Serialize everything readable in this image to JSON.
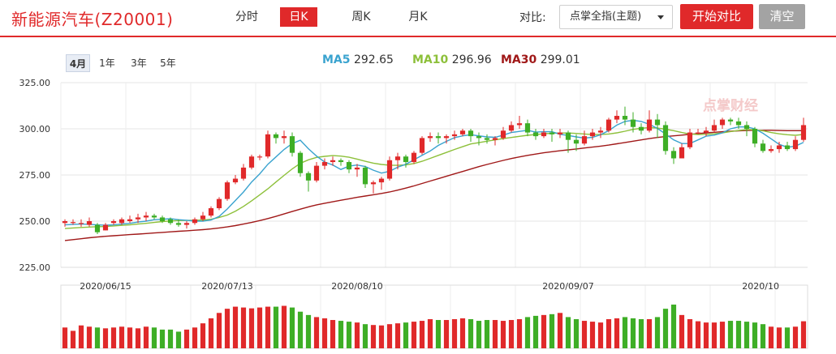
{
  "header": {
    "title": "新能源汽车(Z20001)",
    "period_tabs": [
      {
        "label": "分时",
        "active": false
      },
      {
        "label": "日K",
        "active": true
      },
      {
        "label": "周K",
        "active": false
      },
      {
        "label": "月K",
        "active": false
      }
    ],
    "compare_label": "对比:",
    "compare_select_value": "点掌全指(主题)",
    "start_compare_label": "开始对比",
    "clear_label": "清空"
  },
  "range_tabs": [
    {
      "label": "4月",
      "active": true
    },
    {
      "label": "1年",
      "active": false
    },
    {
      "label": "3年",
      "active": false
    },
    {
      "label": "5年",
      "active": false
    }
  ],
  "ma_legend": [
    {
      "key": "MA5",
      "value": "292.65",
      "color": "#3aa3cf"
    },
    {
      "key": "MA10",
      "value": "296.96",
      "color": "#8dc03a"
    },
    {
      "key": "MA30",
      "value": "299.01",
      "color": "#a01818"
    }
  ],
  "watermark": "点掌财经",
  "colors": {
    "up": "#e0292a",
    "down": "#3eae26",
    "accent": "#e0292a"
  },
  "chart_data": {
    "type": "candlestick",
    "ylim": [
      225,
      325
    ],
    "y_ticks": [
      "325.00",
      "300.00",
      "275.00",
      "250.00",
      "225.00"
    ],
    "x_ticks": [
      "2020/06/15",
      "2020/07/13",
      "2020/08/10",
      "2020/09/07",
      "2020/10"
    ],
    "candles": [
      [
        249,
        250,
        247,
        251
      ],
      [
        249,
        249.5,
        248,
        251
      ],
      [
        249,
        249,
        247,
        251
      ],
      [
        248,
        250,
        247,
        252
      ],
      [
        248,
        244,
        243,
        249
      ],
      [
        245,
        248,
        245,
        249
      ],
      [
        249,
        250,
        248,
        251
      ],
      [
        249,
        251,
        248,
        252
      ],
      [
        250,
        251,
        249,
        253
      ],
      [
        251,
        252,
        249,
        254
      ],
      [
        252,
        253,
        250,
        255
      ],
      [
        253,
        252,
        251,
        254
      ],
      [
        252,
        250,
        249,
        253
      ],
      [
        251,
        249,
        248,
        252
      ],
      [
        249,
        248,
        247,
        251
      ],
      [
        248,
        249,
        246,
        250
      ],
      [
        249,
        251,
        248,
        252
      ],
      [
        251,
        253,
        250,
        255
      ],
      [
        253,
        257,
        252,
        258
      ],
      [
        257,
        262,
        256,
        263
      ],
      [
        262,
        271,
        261,
        272
      ],
      [
        271,
        273,
        270,
        275
      ],
      [
        273,
        279,
        272,
        281
      ],
      [
        279,
        285,
        278,
        286
      ],
      [
        285,
        285,
        283,
        286
      ],
      [
        285,
        297,
        284,
        299
      ],
      [
        297,
        295,
        292,
        298
      ],
      [
        295,
        296,
        292,
        299
      ],
      [
        296,
        287,
        285,
        298
      ],
      [
        287,
        276,
        274,
        288
      ],
      [
        276,
        272,
        266,
        277
      ],
      [
        272,
        280,
        271,
        282
      ],
      [
        280,
        282,
        278,
        284
      ],
      [
        282,
        283,
        280,
        285
      ],
      [
        283,
        282,
        280,
        284
      ],
      [
        282,
        278,
        276,
        283
      ],
      [
        278,
        279,
        274,
        281
      ],
      [
        279,
        270,
        268,
        280
      ],
      [
        270,
        271,
        265,
        272
      ],
      [
        271,
        273,
        267,
        274
      ],
      [
        273,
        283,
        272,
        285
      ],
      [
        283,
        285,
        278,
        287
      ],
      [
        285,
        282,
        279,
        286
      ],
      [
        282,
        287,
        281,
        288
      ],
      [
        287,
        295,
        286,
        296
      ],
      [
        295,
        296,
        293,
        298
      ],
      [
        296,
        295,
        292,
        298
      ],
      [
        295,
        296,
        292,
        297
      ],
      [
        296,
        297,
        294,
        299
      ],
      [
        297,
        299,
        296,
        300
      ],
      [
        299,
        296,
        293,
        300
      ],
      [
        296,
        295,
        291,
        298
      ],
      [
        295,
        294,
        292,
        297
      ],
      [
        294,
        295,
        291,
        296
      ],
      [
        295,
        299,
        294,
        301
      ],
      [
        299,
        302,
        298,
        304
      ],
      [
        302,
        303,
        300,
        307
      ],
      [
        303,
        298,
        296,
        305
      ],
      [
        298,
        296,
        294,
        300
      ],
      [
        296,
        298,
        295,
        300
      ],
      [
        298,
        297,
        293,
        300
      ],
      [
        297,
        298,
        295,
        300
      ],
      [
        298,
        294,
        287,
        299
      ],
      [
        294,
        292,
        288,
        297
      ],
      [
        292,
        296,
        291,
        299
      ],
      [
        296,
        298,
        294,
        300
      ],
      [
        298,
        299,
        295,
        301
      ],
      [
        299,
        305,
        298,
        306
      ],
      [
        305,
        307,
        303,
        310
      ],
      [
        307,
        305,
        302,
        312
      ],
      [
        305,
        301,
        298,
        309
      ],
      [
        301,
        299,
        297,
        303
      ],
      [
        299,
        305,
        298,
        310
      ],
      [
        305,
        302,
        295,
        308
      ],
      [
        302,
        288,
        286,
        304
      ],
      [
        288,
        284,
        281,
        290
      ],
      [
        284,
        290,
        284,
        292
      ],
      [
        290,
        298,
        289,
        300
      ],
      [
        298,
        298,
        297,
        300
      ],
      [
        298,
        299,
        296,
        301
      ],
      [
        299,
        302,
        298,
        305
      ],
      [
        302,
        305,
        300,
        306
      ],
      [
        305,
        304,
        302,
        306
      ],
      [
        304,
        302,
        300,
        306
      ],
      [
        302,
        300,
        296,
        304
      ],
      [
        300,
        292,
        290,
        301
      ],
      [
        292,
        288,
        287,
        294
      ],
      [
        288,
        289,
        287,
        291
      ],
      [
        289,
        291,
        287,
        293
      ],
      [
        291,
        289,
        288,
        293
      ],
      [
        289,
        294,
        288,
        296
      ],
      [
        294,
        302,
        293,
        306
      ]
    ],
    "ma5": [
      248,
      248.2,
      248.4,
      248.3,
      248,
      247.8,
      248,
      248.4,
      248.8,
      249.5,
      250,
      250.8,
      251,
      251.3,
      250.8,
      250.5,
      250,
      250,
      250.6,
      252.6,
      256.6,
      261.2,
      265.8,
      271.2,
      275.6,
      280.8,
      284.8,
      288.8,
      292,
      293.8,
      289.2,
      285.2,
      282,
      280.4,
      278,
      279.8,
      280.4,
      279.6,
      277.6,
      276,
      277,
      279.2,
      280.8,
      283.2,
      285.6,
      288,
      291,
      293.2,
      295.2,
      296.2,
      296.8,
      296.2,
      295.6,
      295.4,
      296.6,
      298,
      298.6,
      299.2,
      298.2,
      298.4,
      298.4,
      297,
      296.4,
      295.6,
      295,
      295.4,
      296.8,
      299,
      302,
      304,
      304.6,
      304,
      302.4,
      300.2,
      297.2,
      294,
      292,
      292,
      294,
      296,
      296.6,
      297.8,
      300,
      301,
      301,
      300,
      297.6,
      294.6,
      291.6,
      290,
      290.6,
      292.65
    ],
    "ma10": [
      246,
      246.3,
      246.6,
      246.8,
      247,
      247.1,
      247.4,
      247.7,
      248,
      248.4,
      248.8,
      249.3,
      249.8,
      250.1,
      250.3,
      250.4,
      250.5,
      250.6,
      251,
      252,
      253.3,
      255.4,
      258,
      261,
      264.2,
      267.5,
      271.2,
      274.8,
      278.3,
      281.3,
      283.2,
      284.5,
      285.1,
      285.5,
      285.2,
      284.6,
      283.6,
      282.4,
      281.4,
      280.7,
      280.3,
      280.2,
      280.5,
      281.2,
      282.4,
      284,
      285.6,
      287.2,
      288.8,
      290.3,
      291.8,
      292.5,
      293.3,
      294,
      294.7,
      295.3,
      295.9,
      296.5,
      296.9,
      297.3,
      297.6,
      297.7,
      297.7,
      297.5,
      297.2,
      296.9,
      296.9,
      297.2,
      297.8,
      298.7,
      299.7,
      300.3,
      300.6,
      300.4,
      299.8,
      299,
      298,
      297.2,
      296.9,
      297,
      297.3,
      297.8,
      298.5,
      299.1,
      299.6,
      299.5,
      298.9,
      298,
      297.3,
      296.8,
      296.5,
      296.96
    ],
    "ma30": [
      239.5,
      240,
      240.5,
      241,
      241.4,
      241.8,
      242.1,
      242.4,
      242.7,
      243,
      243.3,
      243.6,
      243.9,
      244.2,
      244.5,
      244.8,
      245.1,
      245.4,
      245.8,
      246.3,
      246.9,
      247.6,
      248.4,
      249.3,
      250.3,
      251.4,
      252.6,
      253.9,
      255.2,
      256.5,
      257.7,
      258.8,
      259.7,
      260.5,
      261.3,
      262.1,
      262.9,
      263.6,
      264.3,
      265,
      265.8,
      266.8,
      267.9,
      269.1,
      270.4,
      271.7,
      273,
      274.3,
      275.6,
      276.9,
      278.2,
      279.5,
      280.7,
      281.8,
      282.9,
      283.9,
      284.8,
      285.6,
      286.3,
      287,
      287.6,
      288.1,
      288.6,
      289.1,
      289.6,
      290.1,
      290.6,
      291.2,
      291.9,
      292.6,
      293.3,
      294,
      294.7,
      295.3,
      295.8,
      296.2,
      296.6,
      297,
      297.4,
      297.8,
      298.1,
      298.4,
      298.7,
      298.9,
      299.1,
      299.2,
      299.2,
      299.2,
      299.1,
      299,
      299,
      299.01
    ],
    "volume": [
      0.5,
      0.42,
      0.55,
      0.52,
      0.5,
      0.48,
      0.5,
      0.52,
      0.5,
      0.48,
      0.52,
      0.5,
      0.45,
      0.45,
      0.4,
      0.45,
      0.5,
      0.6,
      0.72,
      0.85,
      0.95,
      1.0,
      0.98,
      0.96,
      0.98,
      1.0,
      1.0,
      1.02,
      0.98,
      0.88,
      0.8,
      0.75,
      0.72,
      0.68,
      0.66,
      0.64,
      0.62,
      0.58,
      0.56,
      0.55,
      0.58,
      0.6,
      0.62,
      0.64,
      0.66,
      0.7,
      0.68,
      0.68,
      0.7,
      0.72,
      0.7,
      0.66,
      0.68,
      0.68,
      0.66,
      0.68,
      0.7,
      0.75,
      0.78,
      0.8,
      0.82,
      0.85,
      0.75,
      0.7,
      0.66,
      0.64,
      0.62,
      0.7,
      0.72,
      0.75,
      0.72,
      0.7,
      0.7,
      0.75,
      0.95,
      1.05,
      0.8,
      0.7,
      0.65,
      0.62,
      0.62,
      0.64,
      0.66,
      0.66,
      0.64,
      0.62,
      0.58,
      0.52,
      0.5,
      0.5,
      0.52,
      0.65
    ]
  }
}
